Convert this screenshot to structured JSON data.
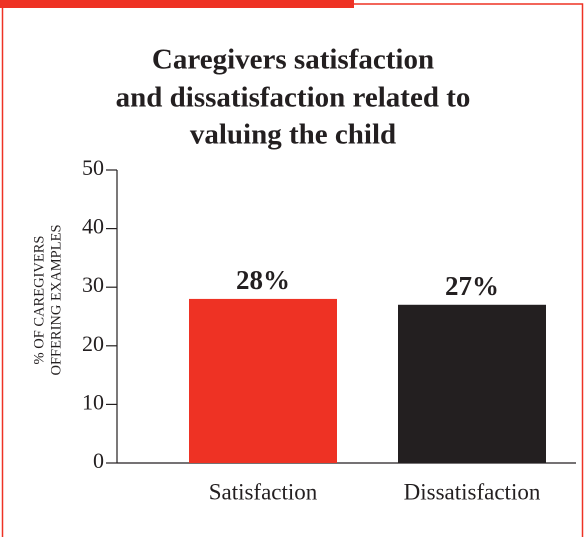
{
  "chart_data": {
    "type": "bar",
    "title": [
      "Caregivers satisfaction",
      "and dissatisfaction related to",
      "valuing the child"
    ],
    "ylabel": [
      "% OF CAREGIVERS",
      "OFFERING EXAMPLES"
    ],
    "categories": [
      "Satisfaction",
      "Dissatisfaction"
    ],
    "values": [
      28,
      27
    ],
    "value_labels": [
      "28%",
      "27%"
    ],
    "colors": [
      "#ee3224",
      "#231f20"
    ],
    "ylim": [
      0,
      50
    ],
    "yticks": [
      0,
      10,
      20,
      30,
      40,
      50
    ],
    "grid": false
  }
}
